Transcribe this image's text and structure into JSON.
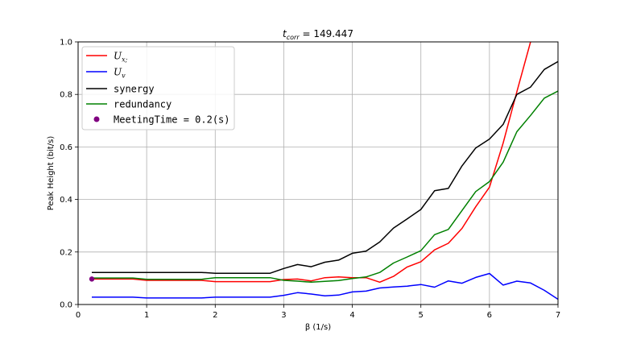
{
  "chart_data": {
    "type": "line",
    "title": "t_corr = 149.447",
    "title_main": "t",
    "title_sub": "corr",
    "title_rest": " = 149.447",
    "xlabel": "β (1/s)",
    "ylabel": "Peak Height (bit/s)",
    "xlim": [
      0,
      7
    ],
    "ylim": [
      0,
      1.0
    ],
    "xticks": [
      0,
      1,
      2,
      3,
      4,
      5,
      6,
      7
    ],
    "xtick_labels": [
      "0",
      "1",
      "2",
      "3",
      "4",
      "5",
      "6",
      "7"
    ],
    "yticks": [
      0.0,
      0.2,
      0.4,
      0.6,
      0.8,
      1.0
    ],
    "ytick_labels": [
      "0.0",
      "0.2",
      "0.4",
      "0.6",
      "0.8",
      "1.0"
    ],
    "grid": true,
    "legend_position": "top-left",
    "series": [
      {
        "name": "U_x;",
        "label_main": "U",
        "label_sub": "x;",
        "color": "#ff0000",
        "x": [
          0.2,
          0.4,
          0.6,
          0.8,
          1.0,
          1.2,
          1.4,
          1.6,
          1.8,
          2.0,
          2.2,
          2.4,
          2.6,
          2.8,
          3.0,
          3.2,
          3.4,
          3.6,
          3.8,
          4.0,
          4.2,
          4.4,
          4.6,
          4.8,
          5.0,
          5.2,
          5.4,
          5.6,
          5.8,
          6.0,
          6.2,
          6.4,
          6.6
        ],
        "y": [
          0.097,
          0.097,
          0.097,
          0.097,
          0.092,
          0.092,
          0.092,
          0.092,
          0.092,
          0.087,
          0.087,
          0.087,
          0.087,
          0.087,
          0.095,
          0.097,
          0.09,
          0.102,
          0.105,
          0.102,
          0.102,
          0.085,
          0.107,
          0.143,
          0.163,
          0.208,
          0.233,
          0.29,
          0.372,
          0.447,
          0.615,
          0.81,
          1.0
        ]
      },
      {
        "name": "U_v",
        "label_main": "U",
        "label_sub": "v",
        "color": "#0000ff",
        "x": [
          0.2,
          0.4,
          0.6,
          0.8,
          1.0,
          1.2,
          1.4,
          1.6,
          1.8,
          2.0,
          2.2,
          2.4,
          2.6,
          2.8,
          3.0,
          3.2,
          3.4,
          3.6,
          3.8,
          4.0,
          4.2,
          4.4,
          4.6,
          4.8,
          5.0,
          5.2,
          5.4,
          5.6,
          5.8,
          6.0,
          6.2,
          6.4,
          6.6,
          6.8,
          7.0
        ],
        "y": [
          0.028,
          0.028,
          0.028,
          0.028,
          0.025,
          0.025,
          0.025,
          0.025,
          0.025,
          0.028,
          0.028,
          0.028,
          0.028,
          0.028,
          0.035,
          0.045,
          0.04,
          0.033,
          0.036,
          0.048,
          0.051,
          0.063,
          0.067,
          0.07,
          0.076,
          0.066,
          0.09,
          0.081,
          0.103,
          0.118,
          0.074,
          0.089,
          0.082,
          0.054,
          0.02
        ]
      },
      {
        "name": "synergy",
        "color": "#000000",
        "x": [
          0.2,
          0.4,
          0.6,
          0.8,
          1.0,
          1.2,
          1.4,
          1.6,
          1.8,
          2.0,
          2.2,
          2.4,
          2.6,
          2.8,
          3.0,
          3.2,
          3.4,
          3.6,
          3.8,
          4.0,
          4.2,
          4.4,
          4.6,
          4.8,
          5.0,
          5.2,
          5.4,
          5.6,
          5.8,
          6.0,
          6.2,
          6.4,
          6.6,
          6.8,
          7.0
        ],
        "y": [
          0.122,
          0.122,
          0.122,
          0.122,
          0.122,
          0.122,
          0.122,
          0.122,
          0.122,
          0.119,
          0.119,
          0.119,
          0.119,
          0.119,
          0.137,
          0.152,
          0.144,
          0.161,
          0.169,
          0.195,
          0.203,
          0.238,
          0.291,
          0.326,
          0.362,
          0.433,
          0.442,
          0.528,
          0.596,
          0.63,
          0.686,
          0.8,
          0.828,
          0.895,
          0.925
        ]
      },
      {
        "name": "redundancy",
        "color": "#008000",
        "x": [
          0.2,
          0.4,
          0.6,
          0.8,
          1.0,
          1.2,
          1.4,
          1.6,
          1.8,
          2.0,
          2.2,
          2.4,
          2.6,
          2.8,
          3.0,
          3.2,
          3.4,
          3.6,
          3.8,
          4.0,
          4.2,
          4.4,
          4.6,
          4.8,
          5.0,
          5.2,
          5.4,
          5.6,
          5.8,
          6.0,
          6.2,
          6.4,
          6.6,
          6.8,
          7.0
        ],
        "y": [
          0.101,
          0.101,
          0.101,
          0.101,
          0.096,
          0.096,
          0.096,
          0.096,
          0.096,
          0.102,
          0.102,
          0.102,
          0.102,
          0.102,
          0.092,
          0.089,
          0.085,
          0.088,
          0.091,
          0.099,
          0.105,
          0.122,
          0.158,
          0.181,
          0.205,
          0.266,
          0.286,
          0.358,
          0.43,
          0.468,
          0.542,
          0.658,
          0.72,
          0.786,
          0.813
        ]
      }
    ],
    "scatter": {
      "name": "MeetingTime = 0.2(s)",
      "color": "#800080",
      "x": 0.2,
      "y": 0.097
    }
  }
}
